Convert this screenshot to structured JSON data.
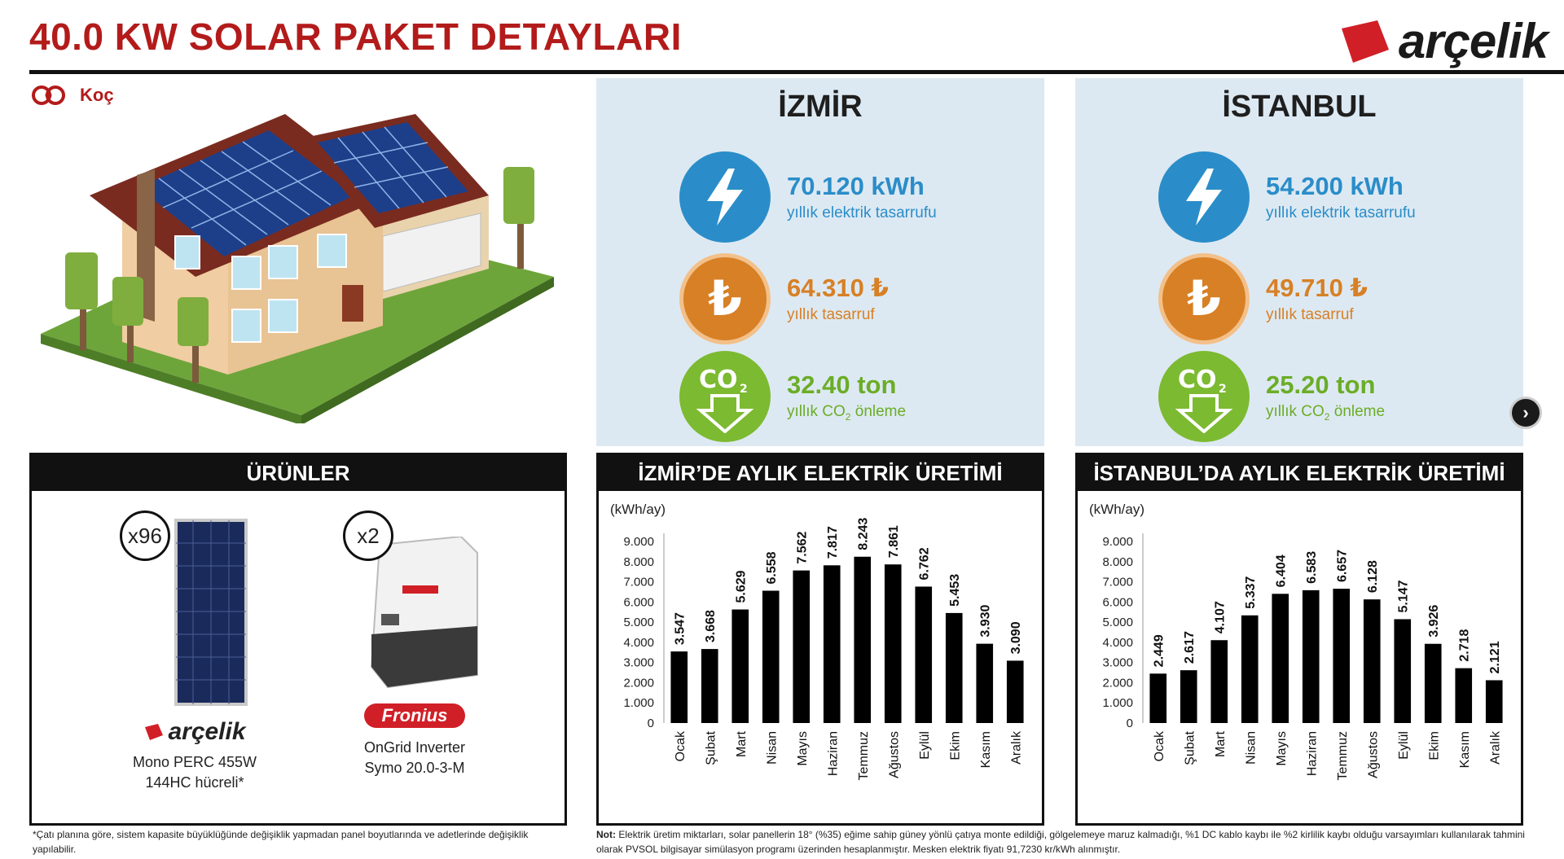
{
  "header": {
    "title": "40.0 KW SOLAR PAKET DETAYLARI",
    "brand": "arçelik",
    "sub_brand": "Koç"
  },
  "colors": {
    "title_red": "#b31b1b",
    "panel_bg": "#dde9f2",
    "blue": "#2a8dc9",
    "orange": "#d78025",
    "green": "#6bad27"
  },
  "cities": [
    {
      "name": "İZMİR",
      "energy": {
        "value": "70.120 kWh",
        "label": "yıllık elektrik tasarrufu",
        "icon": "lightning-icon"
      },
      "money": {
        "value": "64.310 ₺",
        "label": "yıllık tasarruf",
        "icon": "lira-icon"
      },
      "co2": {
        "value": "32.40 ton",
        "label_pre": "yıllık CO",
        "label_sub": "2",
        "label_post": " önleme",
        "icon": "co2-icon"
      }
    },
    {
      "name": "İSTANBUL",
      "energy": {
        "value": "54.200 kWh",
        "label": "yıllık elektrik tasarrufu",
        "icon": "lightning-icon"
      },
      "money": {
        "value": "49.710 ₺",
        "label": "yıllık tasarruf",
        "icon": "lira-icon"
      },
      "co2": {
        "value": "25.20 ton",
        "label_pre": "yıllık CO",
        "label_sub": "2",
        "label_post": " önleme",
        "icon": "co2-icon"
      }
    }
  ],
  "products": {
    "heading": "ÜRÜNLER",
    "panel": {
      "count": "x96",
      "brand": "arçelik",
      "line1": "Mono PERC 455W",
      "line2": "144HC hücreli*"
    },
    "inverter": {
      "count": "x2",
      "brand": "Fronius",
      "line1": "OnGrid Inverter",
      "line2": "Symo 20.0-3-M"
    }
  },
  "chart_data": [
    {
      "type": "bar",
      "title": "İZMİR’DE AYLIK ELEKTRİK ÜRETİMİ",
      "ylabel": "(kWh/ay)",
      "ylim": [
        0,
        9000
      ],
      "yticks": [
        "0",
        "1.000",
        "2.000",
        "3.000",
        "4.000",
        "5.000",
        "6.000",
        "7.000",
        "8.000",
        "9.000"
      ],
      "categories": [
        "Ocak",
        "Şubat",
        "Mart",
        "Nisan",
        "Mayıs",
        "Haziran",
        "Temmuz",
        "Ağustos",
        "Eylül",
        "Ekim",
        "Kasım",
        "Aralık"
      ],
      "values": [
        3547,
        3668,
        5629,
        6558,
        7562,
        7817,
        8243,
        7861,
        6762,
        5453,
        3930,
        3090
      ],
      "labels": [
        "3.547",
        "3.668",
        "5.629",
        "6.558",
        "7.562",
        "7.817",
        "8.243",
        "7.861",
        "6.762",
        "5.453",
        "3.930",
        "3.090"
      ]
    },
    {
      "type": "bar",
      "title": "İSTANBUL’DA AYLIK ELEKTRİK ÜRETİMİ",
      "ylabel": "(kWh/ay)",
      "ylim": [
        0,
        9000
      ],
      "yticks": [
        "0",
        "1.000",
        "2.000",
        "3.000",
        "4.000",
        "5.000",
        "6.000",
        "7.000",
        "8.000",
        "9.000"
      ],
      "categories": [
        "Ocak",
        "Şubat",
        "Mart",
        "Nisan",
        "Mayıs",
        "Haziran",
        "Temmuz",
        "Ağustos",
        "Eylül",
        "Ekim",
        "Kasım",
        "Aralık"
      ],
      "values": [
        2449,
        2617,
        4107,
        5337,
        6404,
        6583,
        6657,
        6128,
        5147,
        3926,
        2718,
        2121
      ],
      "labels": [
        "2.449",
        "2.617",
        "4.107",
        "5.337",
        "6.404",
        "6.583",
        "6.657",
        "6.128",
        "5.147",
        "3.926",
        "2.718",
        "2.121"
      ]
    }
  ],
  "footnotes": {
    "left": "*Çatı planına göre, sistem kapasite büyüklüğünde değişiklik yapmadan panel boyutlarında ve adetlerinde değişiklik yapılabilir.",
    "right_label": "Not:",
    "right": "Elektrik üretim miktarları, solar panellerin 18° (%35) eğime sahip güney yönlü çatıya monte edildiği, gölgelemeye maruz kalmadığı, %1 DC kablo kaybı ile %2 kirlilik kaybı olduğu varsayımları kullanılarak tahmini olarak PVSOL bilgisayar simülasyon programı üzerinden hesaplanmıştır. Mesken elektrik fiyatı 91,7230 kr/kWh alınmıştır."
  },
  "nav": {
    "next_symbol": "›"
  }
}
